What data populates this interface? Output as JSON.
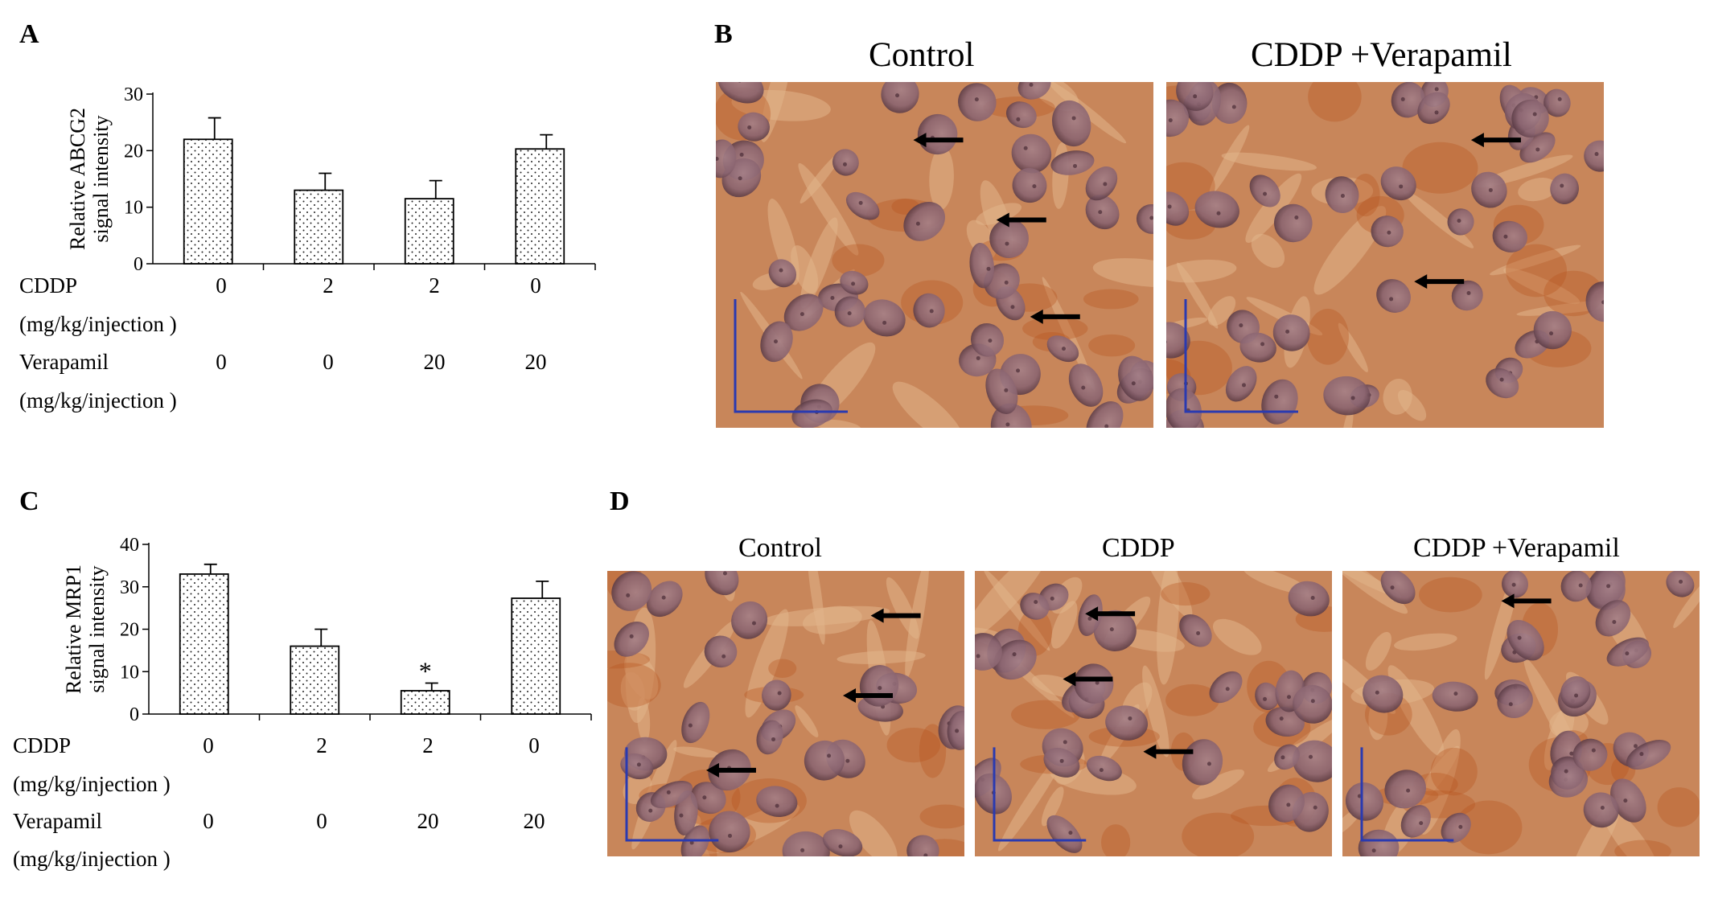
{
  "panels": {
    "A": {
      "letter": "A",
      "chart_data": {
        "type": "bar",
        "ylabel": [
          "Relative ABCG2",
          "signal intensity"
        ],
        "ylim": [
          0,
          30
        ],
        "yticks": [
          0,
          10,
          20,
          30
        ],
        "values": [
          22,
          13,
          11.5,
          20.3
        ],
        "errors": [
          3.8,
          3,
          3.2,
          2.5
        ],
        "significance": [
          "",
          "",
          "",
          ""
        ],
        "grid": false,
        "bar_pattern": "dotted",
        "conditions": [
          {
            "label": "CDDP",
            "values": [
              "0",
              "2",
              "2",
              "0"
            ]
          },
          {
            "label": "(mg/kg/injection )",
            "values": []
          },
          {
            "label": "Verapamil",
            "values": [
              "0",
              "0",
              "20",
              "20"
            ]
          },
          {
            "label": "(mg/kg/injection )",
            "values": []
          }
        ]
      }
    },
    "B": {
      "letter": "B",
      "images": [
        {
          "title": "Control",
          "stain": "IHC ABCG2",
          "arrows": 3
        },
        {
          "title": "CDDP +Verapamil",
          "stain": "IHC ABCG2",
          "arrows": 2
        }
      ]
    },
    "C": {
      "letter": "C",
      "chart_data": {
        "type": "bar",
        "ylabel": [
          "Relative MRP1",
          "signal intensity"
        ],
        "ylim": [
          0,
          40
        ],
        "yticks": [
          0,
          10,
          20,
          30,
          40
        ],
        "values": [
          33,
          16,
          5.5,
          27.3
        ],
        "errors": [
          2.3,
          4,
          1.8,
          4
        ],
        "significance": [
          "",
          "",
          "*",
          ""
        ],
        "grid": false,
        "bar_pattern": "dotted",
        "conditions": [
          {
            "label": "CDDP",
            "values": [
              "0",
              "2",
              "2",
              "0"
            ]
          },
          {
            "label": "(mg/kg/injection )",
            "values": []
          },
          {
            "label": "Verapamil",
            "values": [
              "0",
              "0",
              "20",
              "20"
            ]
          },
          {
            "label": "(mg/kg/injection )",
            "values": []
          }
        ]
      }
    },
    "D": {
      "letter": "D",
      "images": [
        {
          "title": "Control",
          "stain": "IHC MRP1",
          "arrows": 3
        },
        {
          "title": "CDDP",
          "stain": "IHC MRP1",
          "arrows": 3
        },
        {
          "title": "CDDP +Verapamil",
          "stain": "IHC MRP1",
          "arrows": 1
        }
      ]
    }
  },
  "colors": {
    "tissue_base": "#c8865a",
    "tissue_light": "#e2b48a",
    "nucleus": "#8a6470",
    "stain_dark": "#b8541e",
    "scale_bar": "#2a3ab0",
    "arrow": "#000000"
  }
}
